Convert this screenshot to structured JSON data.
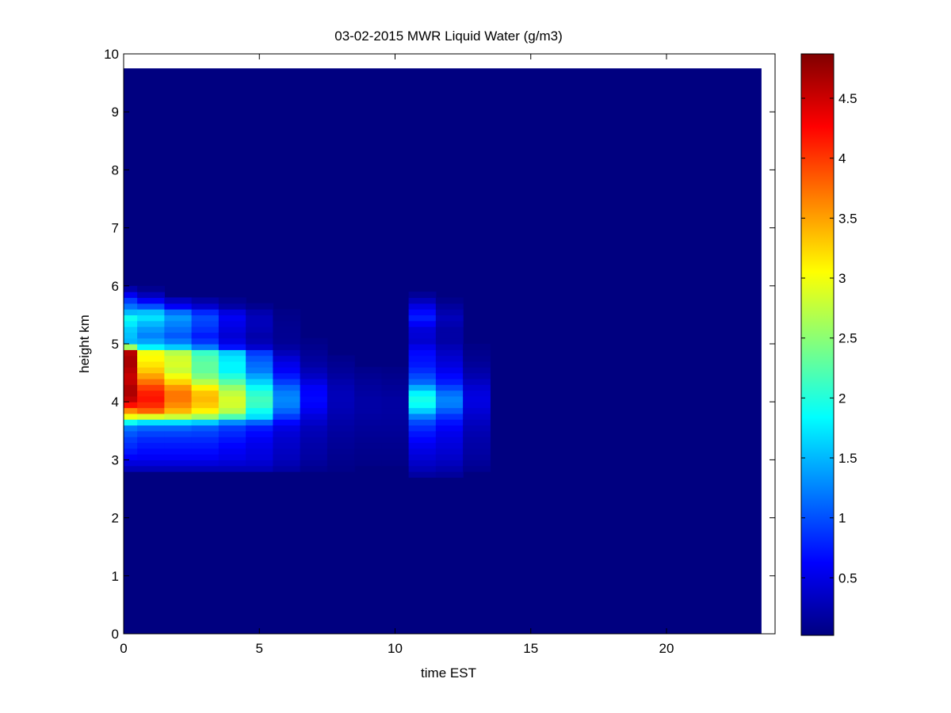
{
  "chart_data": {
    "type": "heatmap",
    "title": "03-02-2015 MWR Liquid Water (g/m3)",
    "xlabel": "time EST",
    "ylabel": "height km",
    "xlim": [
      0,
      24
    ],
    "ylim": [
      0,
      10
    ],
    "xticks": [
      0,
      5,
      10,
      15,
      20
    ],
    "yticks": [
      0,
      1,
      2,
      3,
      4,
      5,
      6,
      7,
      8,
      9,
      10
    ],
    "x_extent": [
      0,
      23.5
    ],
    "y_extent": [
      0,
      9.75
    ],
    "colormap": "jet",
    "clim": [
      0.02,
      4.87
    ],
    "colorbar_ticks": [
      0.5,
      1,
      1.5,
      2,
      2.5,
      3,
      3.5,
      4,
      4.5
    ],
    "columns": [
      {
        "x0": 0.0,
        "x1": 0.5,
        "profile": [
          [
            2.75,
            0.05
          ],
          [
            2.85,
            0.3
          ],
          [
            3.0,
            0.55
          ],
          [
            3.2,
            0.8
          ],
          [
            3.4,
            0.95
          ],
          [
            3.55,
            1.2
          ],
          [
            3.65,
            1.9
          ],
          [
            3.75,
            3.0
          ],
          [
            3.85,
            3.6
          ],
          [
            4.0,
            4.5
          ],
          [
            4.2,
            4.7
          ],
          [
            4.4,
            4.5
          ],
          [
            4.55,
            4.6
          ],
          [
            4.7,
            4.7
          ],
          [
            4.85,
            4.6
          ],
          [
            4.95,
            2.6
          ],
          [
            5.05,
            1.5
          ],
          [
            5.25,
            1.6
          ],
          [
            5.45,
            1.9
          ],
          [
            5.6,
            1.3
          ],
          [
            5.75,
            0.9
          ],
          [
            5.9,
            0.4
          ],
          [
            6.0,
            0.05
          ]
        ]
      },
      {
        "x0": 0.5,
        "x1": 1.5,
        "profile": [
          [
            2.75,
            0.05
          ],
          [
            2.85,
            0.3
          ],
          [
            3.0,
            0.55
          ],
          [
            3.2,
            0.7
          ],
          [
            3.4,
            0.85
          ],
          [
            3.55,
            1.1
          ],
          [
            3.65,
            1.7
          ],
          [
            3.75,
            2.9
          ],
          [
            3.85,
            3.8
          ],
          [
            4.0,
            4.2
          ],
          [
            4.2,
            4.1
          ],
          [
            4.4,
            3.6
          ],
          [
            4.55,
            3.3
          ],
          [
            4.7,
            3.1
          ],
          [
            4.85,
            3.0
          ],
          [
            4.95,
            1.8
          ],
          [
            5.1,
            1.2
          ],
          [
            5.3,
            1.4
          ],
          [
            5.5,
            1.8
          ],
          [
            5.65,
            1.0
          ],
          [
            5.8,
            0.4
          ],
          [
            5.95,
            0.1
          ]
        ]
      },
      {
        "x0": 1.5,
        "x1": 2.5,
        "profile": [
          [
            2.75,
            0.05
          ],
          [
            2.85,
            0.3
          ],
          [
            3.0,
            0.55
          ],
          [
            3.2,
            0.7
          ],
          [
            3.4,
            0.85
          ],
          [
            3.55,
            1.1
          ],
          [
            3.65,
            1.7
          ],
          [
            3.75,
            2.8
          ],
          [
            3.85,
            3.4
          ],
          [
            4.0,
            3.7
          ],
          [
            4.2,
            3.7
          ],
          [
            4.4,
            3.1
          ],
          [
            4.55,
            2.8
          ],
          [
            4.7,
            2.9
          ],
          [
            4.85,
            2.7
          ],
          [
            4.95,
            1.6
          ],
          [
            5.1,
            1.0
          ],
          [
            5.3,
            1.2
          ],
          [
            5.5,
            1.4
          ],
          [
            5.65,
            0.6
          ],
          [
            5.8,
            0.2
          ]
        ]
      },
      {
        "x0": 2.5,
        "x1": 3.5,
        "profile": [
          [
            2.75,
            0.05
          ],
          [
            2.85,
            0.3
          ],
          [
            3.0,
            0.55
          ],
          [
            3.2,
            0.7
          ],
          [
            3.4,
            0.85
          ],
          [
            3.55,
            1.05
          ],
          [
            3.65,
            1.6
          ],
          [
            3.75,
            2.6
          ],
          [
            3.85,
            3.1
          ],
          [
            4.0,
            3.4
          ],
          [
            4.2,
            3.3
          ],
          [
            4.4,
            2.5
          ],
          [
            4.55,
            2.3
          ],
          [
            4.7,
            2.3
          ],
          [
            4.85,
            2.1
          ],
          [
            4.95,
            1.2
          ],
          [
            5.1,
            0.7
          ],
          [
            5.3,
            0.9
          ],
          [
            5.5,
            1.0
          ],
          [
            5.65,
            0.4
          ],
          [
            5.8,
            0.1
          ]
        ]
      },
      {
        "x0": 3.5,
        "x1": 4.5,
        "profile": [
          [
            2.75,
            0.05
          ],
          [
            2.85,
            0.3
          ],
          [
            3.0,
            0.5
          ],
          [
            3.2,
            0.6
          ],
          [
            3.4,
            0.75
          ],
          [
            3.55,
            0.9
          ],
          [
            3.65,
            1.3
          ],
          [
            3.75,
            2.2
          ],
          [
            3.85,
            2.7
          ],
          [
            4.0,
            2.9
          ],
          [
            4.2,
            2.7
          ],
          [
            4.4,
            2.1
          ],
          [
            4.55,
            1.8
          ],
          [
            4.7,
            1.8
          ],
          [
            4.85,
            1.6
          ],
          [
            4.95,
            0.7
          ],
          [
            5.1,
            0.4
          ],
          [
            5.3,
            0.5
          ],
          [
            5.5,
            0.6
          ],
          [
            5.65,
            0.2
          ],
          [
            5.8,
            0.05
          ]
        ]
      },
      {
        "x0": 4.5,
        "x1": 5.5,
        "profile": [
          [
            2.75,
            0.05
          ],
          [
            2.85,
            0.3
          ],
          [
            3.0,
            0.45
          ],
          [
            3.2,
            0.5
          ],
          [
            3.4,
            0.6
          ],
          [
            3.55,
            0.75
          ],
          [
            3.65,
            1.1
          ],
          [
            3.75,
            1.7
          ],
          [
            3.85,
            1.9
          ],
          [
            4.0,
            2.2
          ],
          [
            4.2,
            2.0
          ],
          [
            4.4,
            1.5
          ],
          [
            4.55,
            1.2
          ],
          [
            4.7,
            1.1
          ],
          [
            4.85,
            0.9
          ],
          [
            4.95,
            0.4
          ],
          [
            5.1,
            0.2
          ],
          [
            5.3,
            0.3
          ],
          [
            5.5,
            0.3
          ],
          [
            5.65,
            0.1
          ]
        ]
      },
      {
        "x0": 5.5,
        "x1": 6.5,
        "profile": [
          [
            2.75,
            0.05
          ],
          [
            2.85,
            0.2
          ],
          [
            3.0,
            0.3
          ],
          [
            3.2,
            0.35
          ],
          [
            3.4,
            0.4
          ],
          [
            3.55,
            0.5
          ],
          [
            3.65,
            0.65
          ],
          [
            3.75,
            0.9
          ],
          [
            3.85,
            1.1
          ],
          [
            4.0,
            1.3
          ],
          [
            4.2,
            1.2
          ],
          [
            4.4,
            0.8
          ],
          [
            4.55,
            0.6
          ],
          [
            4.7,
            0.5
          ],
          [
            4.85,
            0.3
          ],
          [
            5.0,
            0.12
          ],
          [
            5.3,
            0.1
          ],
          [
            5.6,
            0.05
          ]
        ]
      },
      {
        "x0": 6.5,
        "x1": 7.5,
        "profile": [
          [
            2.75,
            0.05
          ],
          [
            2.9,
            0.12
          ],
          [
            3.05,
            0.18
          ],
          [
            3.3,
            0.22
          ],
          [
            3.55,
            0.3
          ],
          [
            3.75,
            0.45
          ],
          [
            3.9,
            0.6
          ],
          [
            4.05,
            0.65
          ],
          [
            4.25,
            0.6
          ],
          [
            4.45,
            0.35
          ],
          [
            4.65,
            0.2
          ],
          [
            4.85,
            0.12
          ],
          [
            5.05,
            0.06
          ]
        ]
      },
      {
        "x0": 7.5,
        "x1": 8.5,
        "profile": [
          [
            2.8,
            0.05
          ],
          [
            3.1,
            0.1
          ],
          [
            3.4,
            0.15
          ],
          [
            3.7,
            0.22
          ],
          [
            3.9,
            0.28
          ],
          [
            4.1,
            0.3
          ],
          [
            4.3,
            0.25
          ],
          [
            4.5,
            0.15
          ],
          [
            4.75,
            0.08
          ]
        ]
      },
      {
        "x0": 8.5,
        "x1": 9.5,
        "profile": [
          [
            2.9,
            0.05
          ],
          [
            3.3,
            0.1
          ],
          [
            3.6,
            0.15
          ],
          [
            3.85,
            0.2
          ],
          [
            4.05,
            0.2
          ],
          [
            4.3,
            0.15
          ],
          [
            4.55,
            0.08
          ]
        ]
      },
      {
        "x0": 9.5,
        "x1": 10.5,
        "profile": [
          [
            2.9,
            0.05
          ],
          [
            3.3,
            0.1
          ],
          [
            3.6,
            0.15
          ],
          [
            3.85,
            0.18
          ],
          [
            4.05,
            0.18
          ],
          [
            4.3,
            0.12
          ],
          [
            4.55,
            0.06
          ]
        ]
      },
      {
        "x0": 10.5,
        "x1": 11.5,
        "profile": [
          [
            2.65,
            0.05
          ],
          [
            2.8,
            0.25
          ],
          [
            3.0,
            0.4
          ],
          [
            3.25,
            0.55
          ],
          [
            3.5,
            0.75
          ],
          [
            3.7,
            1.05
          ],
          [
            3.85,
            1.6
          ],
          [
            4.0,
            2.0
          ],
          [
            4.15,
            1.8
          ],
          [
            4.35,
            1.1
          ],
          [
            4.6,
            0.75
          ],
          [
            4.85,
            0.65
          ],
          [
            5.05,
            0.4
          ],
          [
            5.25,
            0.45
          ],
          [
            5.45,
            0.75
          ],
          [
            5.6,
            0.6
          ],
          [
            5.75,
            0.3
          ],
          [
            5.9,
            0.05
          ]
        ]
      },
      {
        "x0": 11.5,
        "x1": 12.5,
        "profile": [
          [
            2.65,
            0.05
          ],
          [
            2.8,
            0.2
          ],
          [
            3.0,
            0.35
          ],
          [
            3.25,
            0.45
          ],
          [
            3.5,
            0.55
          ],
          [
            3.7,
            0.75
          ],
          [
            3.85,
            1.05
          ],
          [
            4.0,
            1.3
          ],
          [
            4.15,
            1.15
          ],
          [
            4.35,
            0.75
          ],
          [
            4.6,
            0.5
          ],
          [
            4.85,
            0.35
          ],
          [
            5.05,
            0.2
          ],
          [
            5.25,
            0.2
          ],
          [
            5.45,
            0.3
          ],
          [
            5.6,
            0.2
          ],
          [
            5.75,
            0.08
          ]
        ]
      },
      {
        "x0": 12.5,
        "x1": 13.5,
        "profile": [
          [
            2.75,
            0.05
          ],
          [
            2.9,
            0.12
          ],
          [
            3.1,
            0.18
          ],
          [
            3.35,
            0.22
          ],
          [
            3.6,
            0.3
          ],
          [
            3.8,
            0.4
          ],
          [
            4.0,
            0.5
          ],
          [
            4.2,
            0.45
          ],
          [
            4.45,
            0.25
          ],
          [
            4.7,
            0.12
          ],
          [
            4.95,
            0.06
          ]
        ]
      },
      {
        "x0": 13.5,
        "x1": 23.5,
        "profile": []
      }
    ]
  }
}
